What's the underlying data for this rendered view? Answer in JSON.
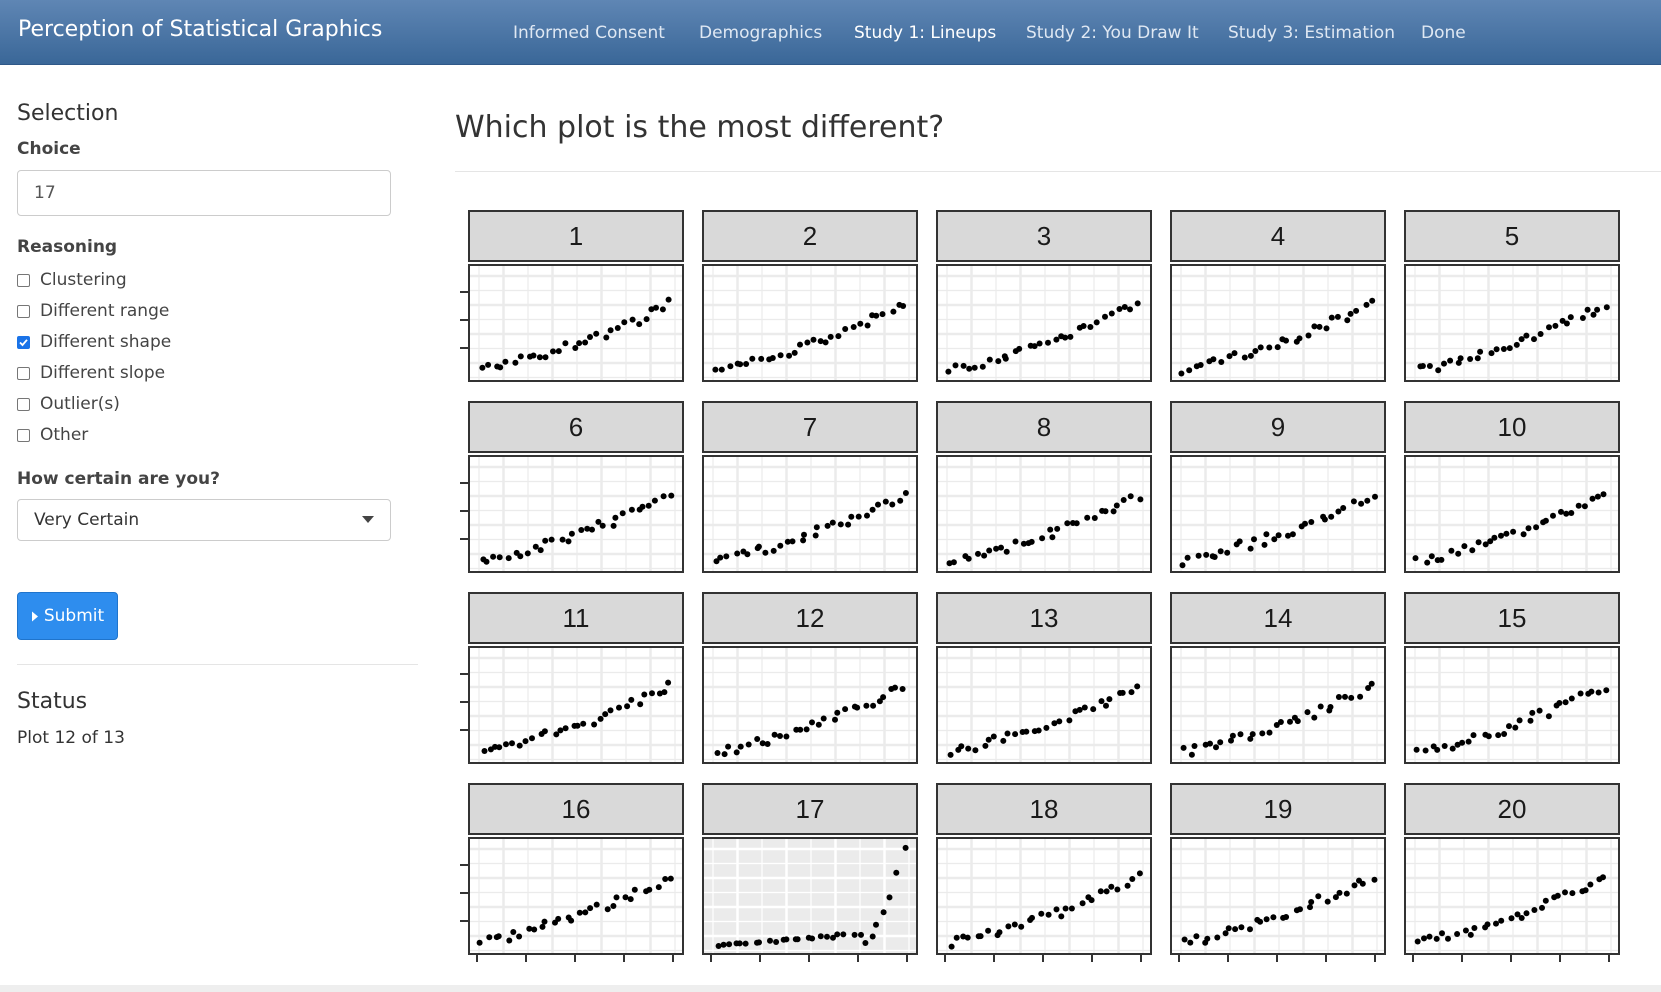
{
  "navbar": {
    "brand": "Perception of Statistical Graphics",
    "items": [
      {
        "label": "Informed Consent",
        "active": false
      },
      {
        "label": "Demographics",
        "active": false
      },
      {
        "label": "Study 1: Lineups",
        "active": true
      },
      {
        "label": "Study 2: You Draw It",
        "active": false
      },
      {
        "label": "Study 3: Estimation",
        "active": false
      },
      {
        "label": "Done",
        "active": false
      }
    ]
  },
  "sidebar": {
    "heading": "Selection",
    "choice_label": "Choice",
    "choice_value": "17",
    "reasoning_label": "Reasoning",
    "reasoning_options": [
      {
        "label": "Clustering",
        "checked": false
      },
      {
        "label": "Different range",
        "checked": false
      },
      {
        "label": "Different shape",
        "checked": true
      },
      {
        "label": "Different slope",
        "checked": false
      },
      {
        "label": "Outlier(s)",
        "checked": false
      },
      {
        "label": "Other",
        "checked": false
      }
    ],
    "certainty_label": "How certain are you?",
    "certainty_value": "Very Certain",
    "submit_label": "Submit",
    "status_heading": "Status",
    "status_text": "Plot 12 of 13"
  },
  "main": {
    "question": "Which plot is the most different?"
  },
  "chart_data": {
    "type": "scatter",
    "panels": [
      "1",
      "2",
      "3",
      "4",
      "5",
      "6",
      "7",
      "8",
      "9",
      "10",
      "11",
      "12",
      "13",
      "14",
      "15",
      "16",
      "17",
      "18",
      "19",
      "20"
    ],
    "highlighted_panel": "17",
    "points_per_panel": 30,
    "colors": {
      "points": "#000000",
      "strip": "#d9d9d9",
      "plot_bg": "#ffffff",
      "highlight_bg": "#ebebeb",
      "grid": "#ebebeb",
      "border": "#333333"
    }
  }
}
